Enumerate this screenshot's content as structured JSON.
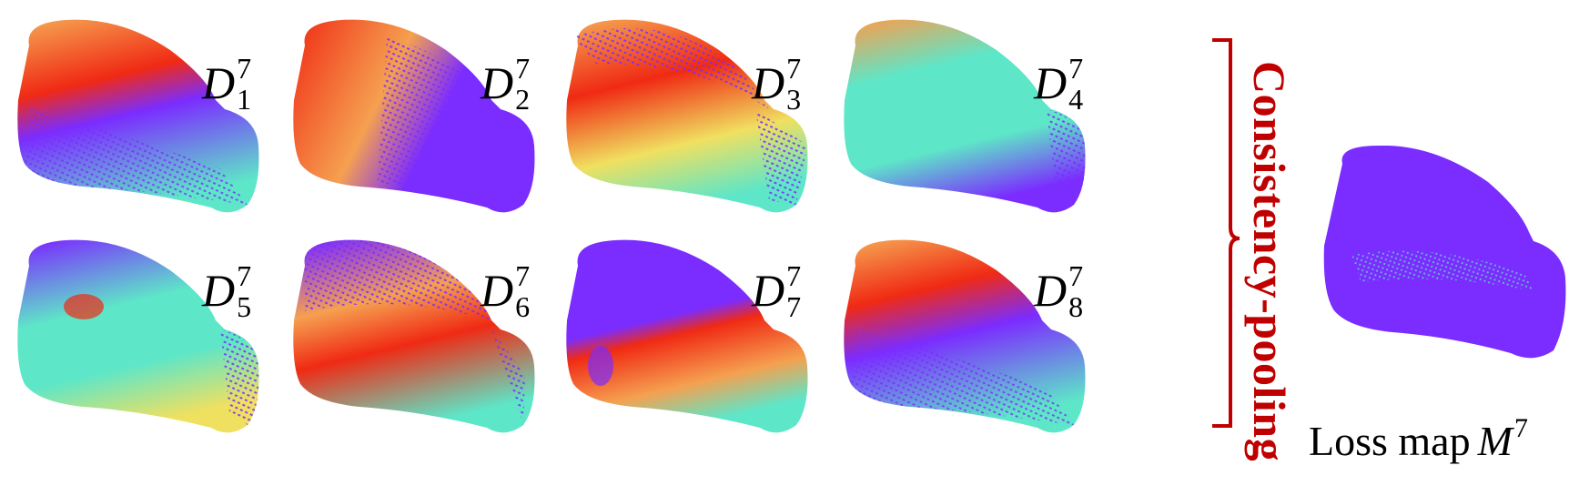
{
  "panels": [
    {
      "id": "d1",
      "label": "D",
      "sub": "1",
      "sup": "7",
      "scheme": "red-top"
    },
    {
      "id": "d2",
      "label": "D",
      "sub": "2",
      "sup": "7",
      "scheme": "red-left"
    },
    {
      "id": "d3",
      "label": "D",
      "sub": "3",
      "sup": "7",
      "scheme": "red-center"
    },
    {
      "id": "d4",
      "label": "D",
      "sub": "4",
      "sup": "7",
      "scheme": "cyan"
    },
    {
      "id": "d5",
      "label": "D",
      "sub": "5",
      "sup": "7",
      "scheme": "cyan-red-spot"
    },
    {
      "id": "d6",
      "label": "D",
      "sub": "6",
      "sup": "7",
      "scheme": "red-bottom"
    },
    {
      "id": "d7",
      "label": "D",
      "sub": "7",
      "sup": "7",
      "scheme": "purple-top-red-bottom"
    },
    {
      "id": "d8",
      "label": "D",
      "sub": "8",
      "sup": "7",
      "scheme": "red-top-band"
    }
  ],
  "pooling_label": "Consistency-pooling",
  "loss_map": {
    "text": "Loss map",
    "symbol": "M",
    "sup": "7"
  },
  "colors": {
    "red": "#f02a14",
    "orange": "#f5a050",
    "yellow": "#f0e060",
    "cyan": "#5ee6c8",
    "purple": "#7b2cff",
    "pool_red": "#c00000"
  }
}
